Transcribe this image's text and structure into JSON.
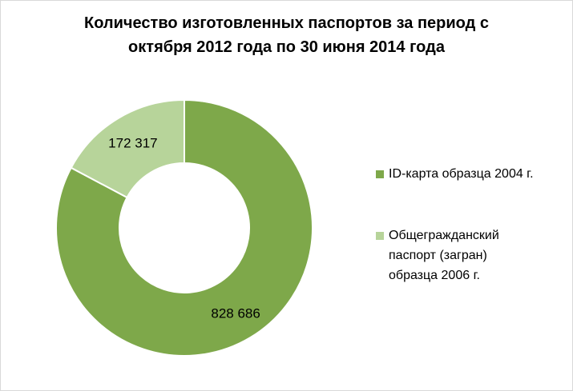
{
  "chart_data": {
    "type": "pie",
    "variant": "donut",
    "title": "Количество изготовленных паспортов за период с октября 2012 года по 30 июня 2014 года",
    "title_lines": [
      "Количество изготовленных паспортов за период с",
      "октября 2012 года по 30 июня 2014 года"
    ],
    "categories": [
      "ID-карта образца 2004 г.",
      "Общегражданский паспорт (загран) образца 2006 г."
    ],
    "legend_lines": [
      [
        "ID-карта образца 2004 г."
      ],
      [
        "Общегражданский",
        "паспорт (загран)",
        "образца 2006 г."
      ]
    ],
    "values": [
      828686,
      172317
    ],
    "value_labels": [
      "828 686",
      "172 317"
    ],
    "colors": [
      "#7ea84a",
      "#b7d49a"
    ],
    "legend_position": "right",
    "start_angle": "top",
    "direction": "clockwise"
  }
}
